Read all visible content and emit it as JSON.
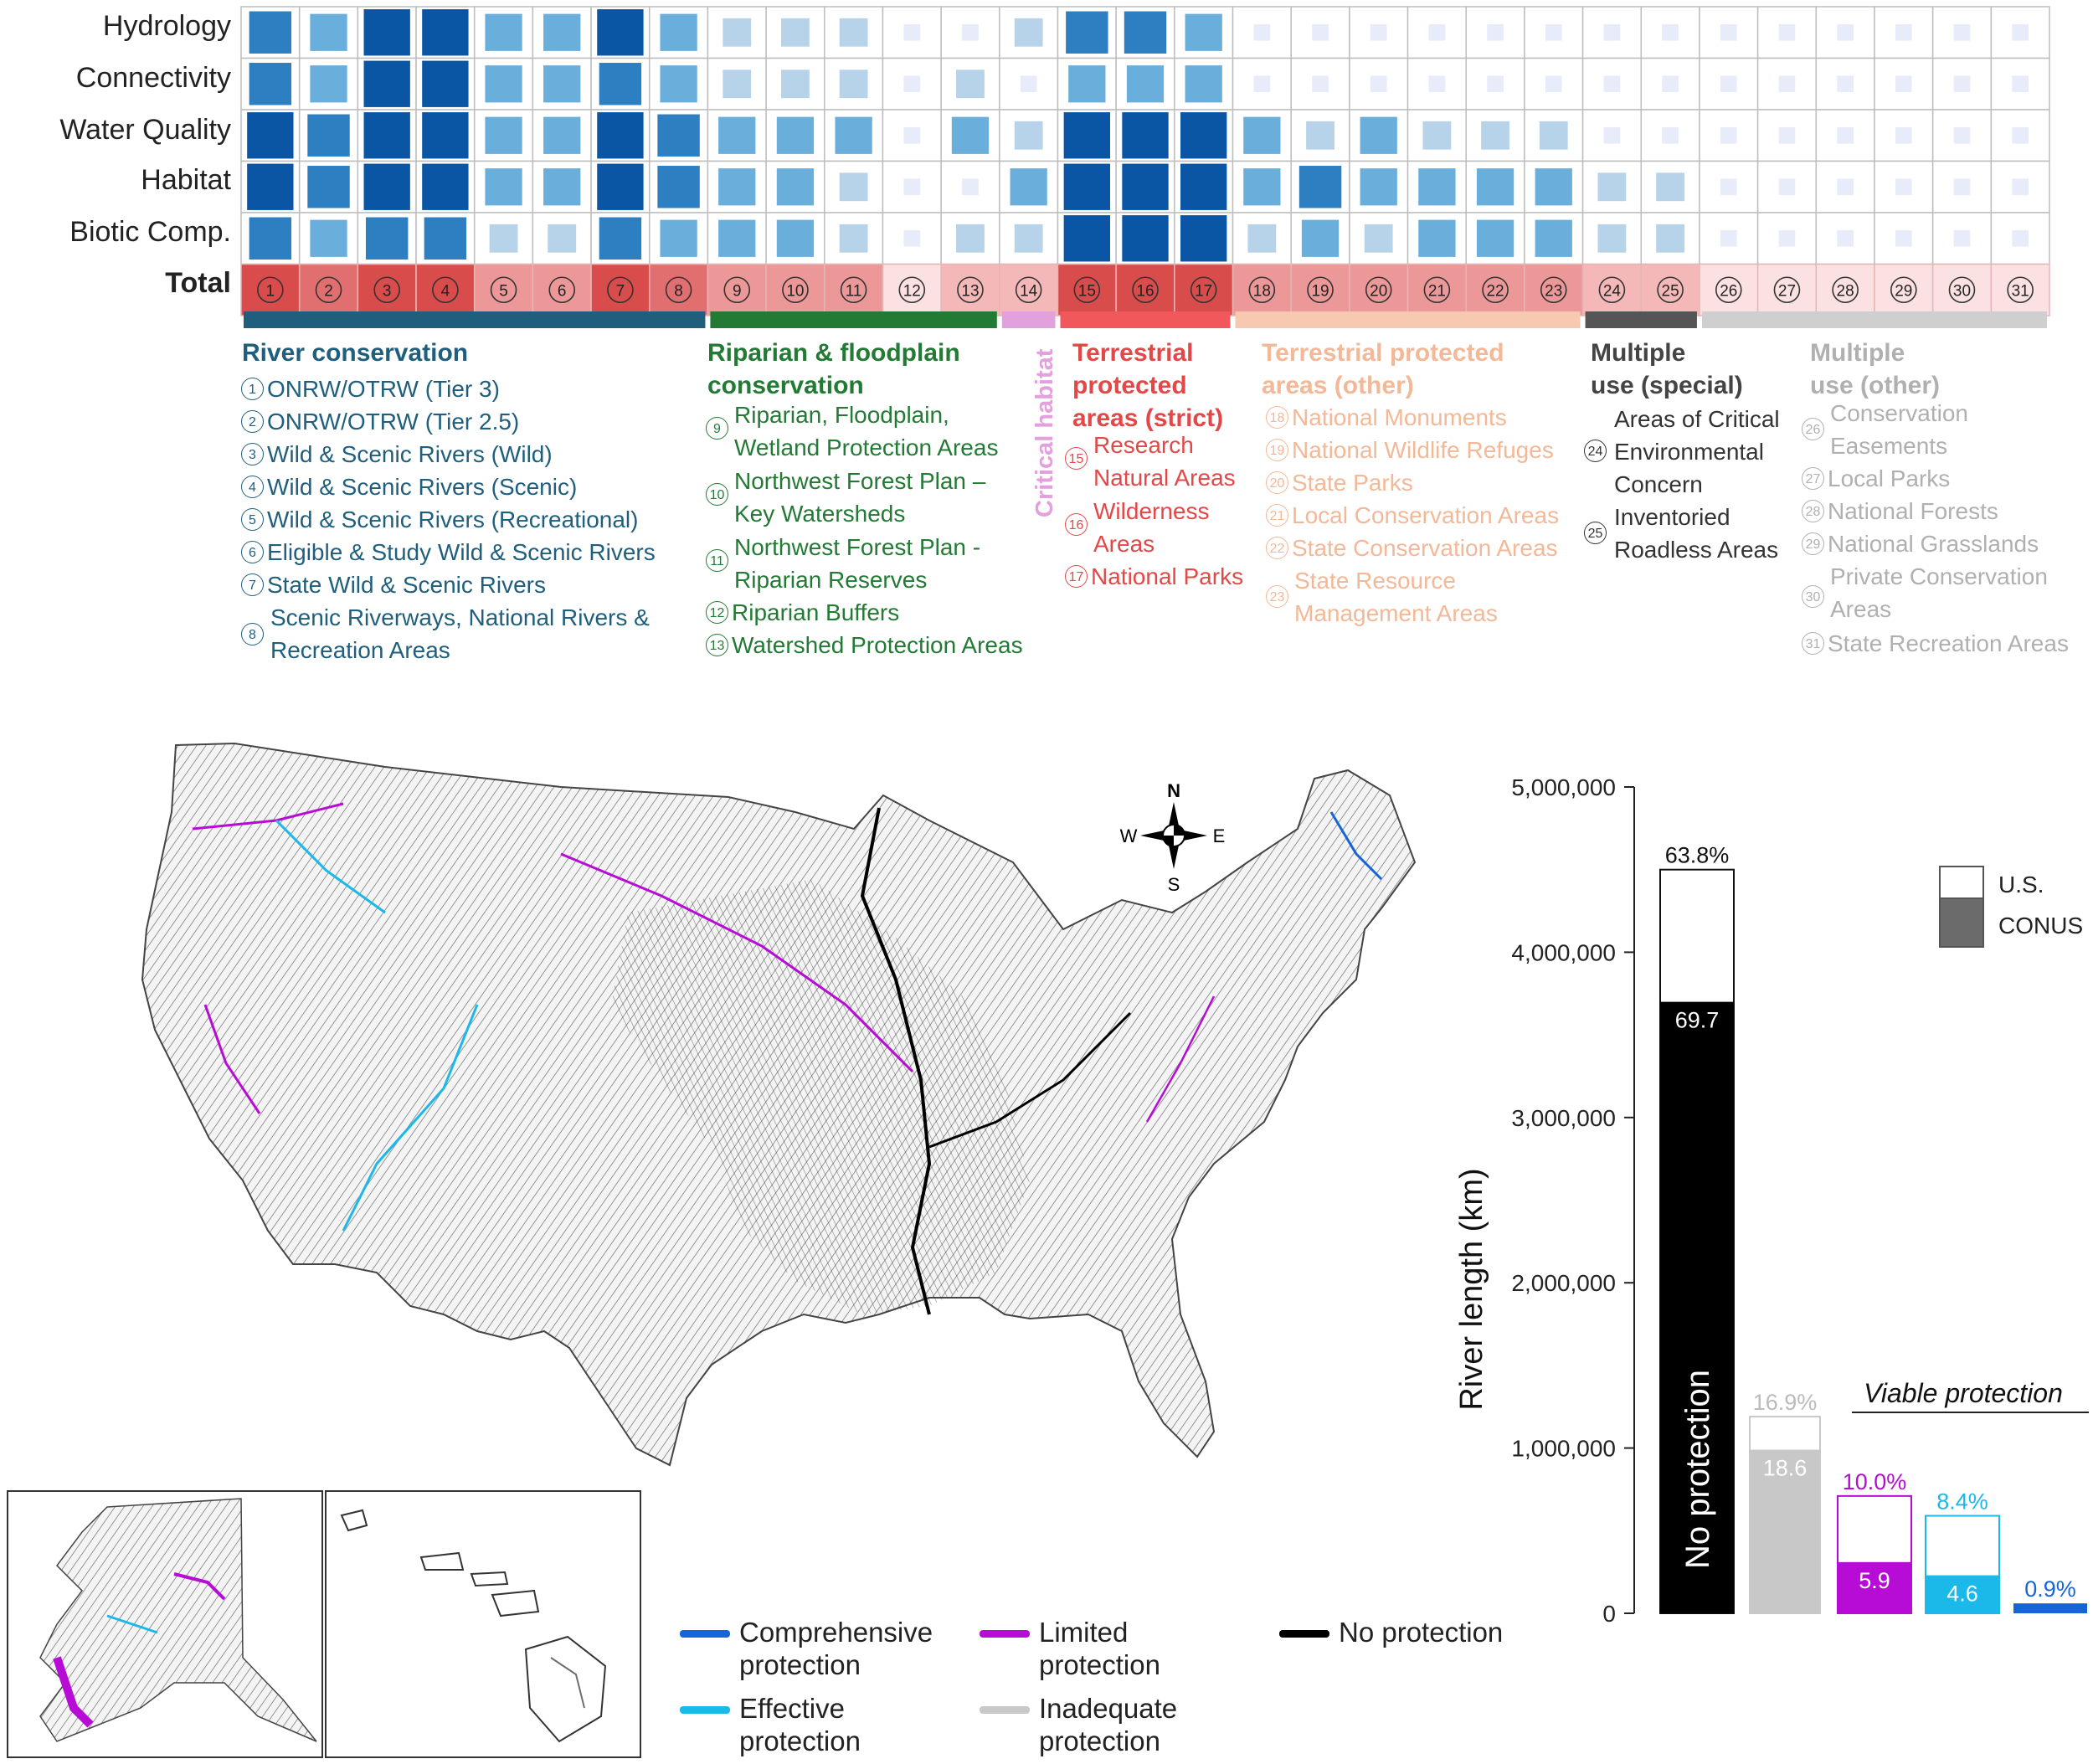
{
  "matrix": {
    "row_labels": [
      "Hydrology",
      "Connectivity",
      "Water Quality",
      "Habitat",
      "Biotic Comp."
    ],
    "total_label": "Total",
    "columns": [
      "1",
      "2",
      "3",
      "4",
      "5",
      "6",
      "7",
      "8",
      "9",
      "10",
      "11",
      "12",
      "13",
      "14",
      "15",
      "16",
      "17",
      "18",
      "19",
      "20",
      "21",
      "22",
      "23",
      "24",
      "25",
      "26",
      "27",
      "28",
      "29",
      "30",
      "31"
    ],
    "levels": [
      [
        3,
        2,
        4,
        4,
        2,
        2,
        4,
        2,
        1,
        1,
        1,
        0,
        0,
        1,
        3,
        3,
        2,
        0,
        0,
        0,
        0,
        0,
        0,
        0,
        0,
        0,
        0,
        0,
        0,
        0,
        0
      ],
      [
        3,
        2,
        4,
        4,
        2,
        2,
        3,
        2,
        1,
        1,
        1,
        0,
        1,
        0,
        2,
        2,
        2,
        0,
        0,
        0,
        0,
        0,
        0,
        0,
        0,
        0,
        0,
        0,
        0,
        0,
        0
      ],
      [
        4,
        3,
        4,
        4,
        2,
        2,
        4,
        3,
        2,
        2,
        2,
        0,
        2,
        1,
        4,
        4,
        4,
        2,
        1,
        2,
        1,
        1,
        1,
        0,
        0,
        0,
        0,
        0,
        0,
        0,
        0
      ],
      [
        4,
        3,
        4,
        4,
        2,
        2,
        4,
        3,
        2,
        2,
        1,
        0,
        0,
        2,
        4,
        4,
        4,
        2,
        3,
        2,
        2,
        2,
        2,
        1,
        1,
        0,
        0,
        0,
        0,
        0,
        0
      ],
      [
        3,
        2,
        3,
        3,
        1,
        1,
        3,
        2,
        2,
        2,
        1,
        0,
        1,
        1,
        4,
        4,
        4,
        1,
        2,
        1,
        2,
        2,
        2,
        1,
        1,
        0,
        0,
        0,
        0,
        0,
        0
      ]
    ],
    "total_level": [
      5,
      4,
      5,
      5,
      3,
      3,
      5,
      4,
      3,
      3,
      3,
      1,
      2,
      2,
      5,
      5,
      5,
      3,
      3,
      3,
      3,
      3,
      3,
      2,
      2,
      1,
      1,
      1,
      1,
      1,
      1
    ],
    "level_colors": [
      "#e8ecfa",
      "#b7d3ea",
      "#6aaedc",
      "#2e7fc2",
      "#0b56a4"
    ],
    "total_colors": [
      "#ffffff",
      "#fbe1e1",
      "#f5b8b8",
      "#ed9898",
      "#e26f6f",
      "#d94c4c"
    ]
  },
  "category_bars": [
    {
      "from": 1,
      "to": 8,
      "color": "#1f5f7d"
    },
    {
      "from": 9,
      "to": 13,
      "color": "#237a35"
    },
    {
      "from": 14,
      "to": 14,
      "color": "#e2a0dc"
    },
    {
      "from": 15,
      "to": 17,
      "color": "#f0585c"
    },
    {
      "from": 18,
      "to": 23,
      "color": "#f6c9b0"
    },
    {
      "from": 24,
      "to": 25,
      "color": "#555555"
    },
    {
      "from": 26,
      "to": 31,
      "color": "#cfcfcf"
    }
  ],
  "categories": {
    "river": {
      "title": "River conservation",
      "color": "#1f5f7d",
      "items": [
        {
          "n": "1",
          "text": "ONRW/OTRW (Tier 3)"
        },
        {
          "n": "2",
          "text": "ONRW/OTRW (Tier 2.5)"
        },
        {
          "n": "3",
          "text": "Wild & Scenic Rivers (Wild)"
        },
        {
          "n": "4",
          "text": "Wild & Scenic Rivers (Scenic)"
        },
        {
          "n": "5",
          "text": "Wild & Scenic Rivers (Recreational)"
        },
        {
          "n": "6",
          "text": "Eligible & Study Wild & Scenic Rivers"
        },
        {
          "n": "7",
          "text": "State Wild & Scenic Rivers"
        },
        {
          "n": "8",
          "text_line1": "Scenic Riverways, National Rivers &",
          "text_line2": "Recreation Areas"
        }
      ]
    },
    "riparian": {
      "title_line1": "Riparian & floodplain",
      "title_line2": "conservation",
      "color": "#237a35",
      "items": [
        {
          "n": "9",
          "text_line1": "Riparian, Floodplain,",
          "text_line2": "Wetland Protection Areas"
        },
        {
          "n": "10",
          "text_line1": "Northwest Forest Plan –",
          "text_line2": "Key Watersheds"
        },
        {
          "n": "11",
          "text_line1": "Northwest Forest Plan -",
          "text_line2": "Riparian Reserves"
        },
        {
          "n": "12",
          "text": "Riparian Buffers"
        },
        {
          "n": "13",
          "text": "Watershed Protection Areas"
        }
      ]
    },
    "critical": {
      "title": "Critical habitat",
      "color": "#e2a0dc"
    },
    "strict": {
      "title_line1": "Terrestrial",
      "title_line2": "protected",
      "title_line3": "areas (strict)",
      "color": "#e34848",
      "items": [
        {
          "n": "15",
          "text_line1": "Research",
          "text_line2": "Natural Areas"
        },
        {
          "n": "16",
          "text_line1": "Wilderness",
          "text_line2": "Areas"
        },
        {
          "n": "17",
          "text": "National Parks"
        }
      ]
    },
    "other_terr": {
      "title_line1": "Terrestrial protected",
      "title_line2": "areas (other)",
      "color": "#f3b897",
      "items": [
        {
          "n": "18",
          "text": "National Monuments"
        },
        {
          "n": "19",
          "text": "National Wildlife Refuges"
        },
        {
          "n": "20",
          "text": "State Parks"
        },
        {
          "n": "21",
          "text": "Local Conservation Areas"
        },
        {
          "n": "22",
          "text": "State Conservation Areas"
        },
        {
          "n": "23",
          "text_line1": "State Resource",
          "text_line2": "Management Areas"
        }
      ]
    },
    "special": {
      "title_line1": "Multiple",
      "title_line2": "use (special)",
      "color": "#444444",
      "items": [
        {
          "n": "24",
          "text_line1": "Areas of Critical",
          "text_line2": "Environmental",
          "text_line3": "Concern"
        },
        {
          "n": "25",
          "text_line1": "Inventoried",
          "text_line2": "Roadless Areas"
        }
      ]
    },
    "other_use": {
      "title_line1": "Multiple",
      "title_line2": "use (other)",
      "color": "#b0b0b0",
      "items": [
        {
          "n": "26",
          "text_line1": "Conservation",
          "text_line2": "Easements"
        },
        {
          "n": "27",
          "text": "Local Parks"
        },
        {
          "n": "28",
          "text": "National Forests"
        },
        {
          "n": "29",
          "text": "National Grasslands"
        },
        {
          "n": "30",
          "text_line1": "Private Conservation",
          "text_line2": "Areas"
        },
        {
          "n": "31",
          "text": "State Recreation Areas"
        }
      ]
    }
  },
  "compass": {
    "n": "N",
    "s": "S",
    "e": "E",
    "w": "W"
  },
  "map_legend": [
    {
      "line1": "Comprehensive",
      "line2": "protection",
      "color": "#1565d8"
    },
    {
      "line1": "Limited",
      "line2": "protection",
      "color": "#b70bd6"
    },
    {
      "line1": "No protection",
      "line2": "",
      "color": "#000000"
    },
    {
      "line1": "Effective",
      "line2": "protection",
      "color": "#1bb8ea"
    },
    {
      "line1": "Inadequate",
      "line2": "protection",
      "color": "#c8c8c8"
    }
  ],
  "chart_data": {
    "type": "bar",
    "ylabel": "River length (km)",
    "ylim": [
      0,
      5000000
    ],
    "yticks": [
      "0",
      "1,000,000",
      "2,000,000",
      "3,000,000",
      "4,000,000",
      "5,000,000"
    ],
    "ytick_values": [
      0,
      1000000,
      2000000,
      3000000,
      4000000,
      5000000
    ],
    "categories": [
      "No protection",
      "Inadequate protection",
      "Limited protection",
      "Effective protection",
      "Comprehensive protection"
    ],
    "inbar_label": "No protection",
    "series": [
      {
        "name": "U.S.",
        "values": [
          4500000,
          1190000,
          710000,
          590000,
          60000
        ],
        "labels": [
          "63.8%",
          "16.9%",
          "10.0%",
          "8.4%",
          "0.9%"
        ]
      },
      {
        "name": "CONUS",
        "values": [
          3700000,
          990000,
          310000,
          230000,
          0
        ],
        "labels": [
          "69.7",
          "18.6",
          "5.9",
          "4.6",
          ""
        ]
      }
    ],
    "bar_colors": [
      "#000000",
      "#c8c8c8",
      "#b70bd6",
      "#1bb8ea",
      "#1565d8"
    ],
    "label_colors": [
      "#111111",
      "#bbbbbb",
      "#b70bd6",
      "#1bb8ea",
      "#1565d8"
    ],
    "legend_placement": "top-right",
    "annotation": "Viable protection"
  }
}
